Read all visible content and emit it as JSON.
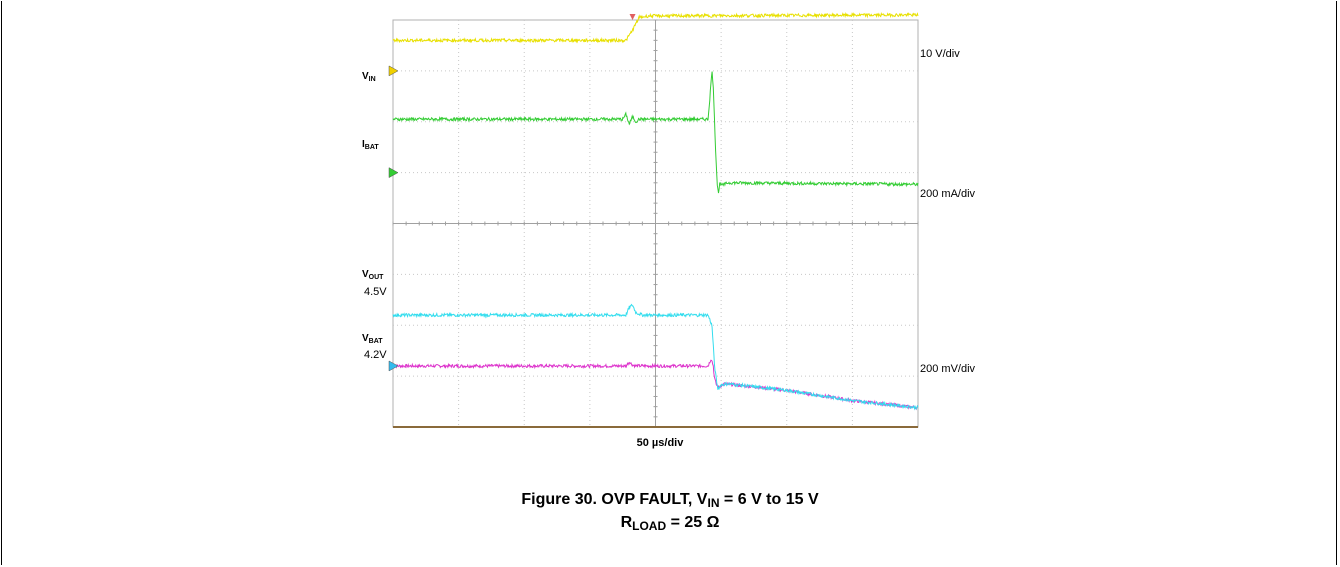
{
  "chart_data": {
    "type": "line",
    "title": "",
    "xlabel": "50 µs/div",
    "x_divisions": 8,
    "y_divisions": 8,
    "grid": true,
    "x_unit": "div",
    "fault_time_div": 4.95,
    "channels": [
      {
        "name": "VIN",
        "label_main": "V",
        "label_sub": "IN",
        "scale": "10 V/div",
        "color": "#e8e000",
        "marker_color": "#f0d000",
        "marker_div": 7.0,
        "points": [
          [
            0,
            7.6
          ],
          [
            3.55,
            7.6
          ],
          [
            3.65,
            7.8
          ],
          [
            3.75,
            8.05
          ],
          [
            3.9,
            8.08
          ],
          [
            8.0,
            8.1
          ]
        ]
      },
      {
        "name": "IBAT",
        "label_main": "I",
        "label_sub": "BAT",
        "scale": "200 mA/div",
        "color": "#33cc33",
        "marker_color": "#33cc33",
        "marker_div": 5.0,
        "points": [
          [
            0,
            6.05
          ],
          [
            3.5,
            6.05
          ],
          [
            3.55,
            6.15
          ],
          [
            3.6,
            5.95
          ],
          [
            3.65,
            6.1
          ],
          [
            3.7,
            6.0
          ],
          [
            3.75,
            6.05
          ],
          [
            4.8,
            6.05
          ],
          [
            4.83,
            6.5
          ],
          [
            4.86,
            7.0
          ],
          [
            4.88,
            6.7
          ],
          [
            4.9,
            6.0
          ],
          [
            4.92,
            5.3
          ],
          [
            4.94,
            4.8
          ],
          [
            4.96,
            4.6
          ],
          [
            4.98,
            4.8
          ],
          [
            5.02,
            4.75
          ],
          [
            5.1,
            4.8
          ],
          [
            8.0,
            4.77
          ]
        ]
      },
      {
        "name": "VOUT",
        "label_main": "V",
        "label_sub": "OUT",
        "value": "4.5V",
        "color": "#33ddee",
        "marker_color": "#33bbee",
        "marker_div": 1.2,
        "points": [
          [
            0,
            2.2
          ],
          [
            3.55,
            2.2
          ],
          [
            3.6,
            2.35
          ],
          [
            3.65,
            2.4
          ],
          [
            3.7,
            2.25
          ],
          [
            3.8,
            2.2
          ],
          [
            4.8,
            2.2
          ],
          [
            4.86,
            2.0
          ],
          [
            4.88,
            1.6
          ],
          [
            4.9,
            1.2
          ],
          [
            4.93,
            0.9
          ],
          [
            4.95,
            0.75
          ],
          [
            5.0,
            0.83
          ],
          [
            5.1,
            0.85
          ],
          [
            6.0,
            0.72
          ],
          [
            7.0,
            0.52
          ],
          [
            8.0,
            0.38
          ]
        ]
      },
      {
        "name": "VBAT",
        "label_main": "V",
        "label_sub": "BAT",
        "value": "4.2V",
        "scale": "200 mV/div",
        "color": "#dd33cc",
        "marker_color": "#dd33cc",
        "points": [
          [
            0,
            1.2
          ],
          [
            3.55,
            1.2
          ],
          [
            3.6,
            1.28
          ],
          [
            3.65,
            1.22
          ],
          [
            3.7,
            1.2
          ],
          [
            4.8,
            1.2
          ],
          [
            4.85,
            1.35
          ],
          [
            4.88,
            1.2
          ],
          [
            4.9,
            0.95
          ],
          [
            4.93,
            0.82
          ],
          [
            4.96,
            0.78
          ],
          [
            5.05,
            0.85
          ],
          [
            6.0,
            0.72
          ],
          [
            7.0,
            0.52
          ],
          [
            8.0,
            0.38
          ]
        ]
      }
    ],
    "scale_labels": [
      "10 V/div",
      "200 mA/div",
      "200 mV/div"
    ]
  },
  "caption": {
    "line1_prefix": "Figure 30. OVP FAULT, V",
    "line1_sub": "IN",
    "line1_suffix": " = 6 V to 15 V",
    "line2_main": "R",
    "line2_sub": "LOAD",
    "line2_suffix": " = 25 Ω"
  }
}
